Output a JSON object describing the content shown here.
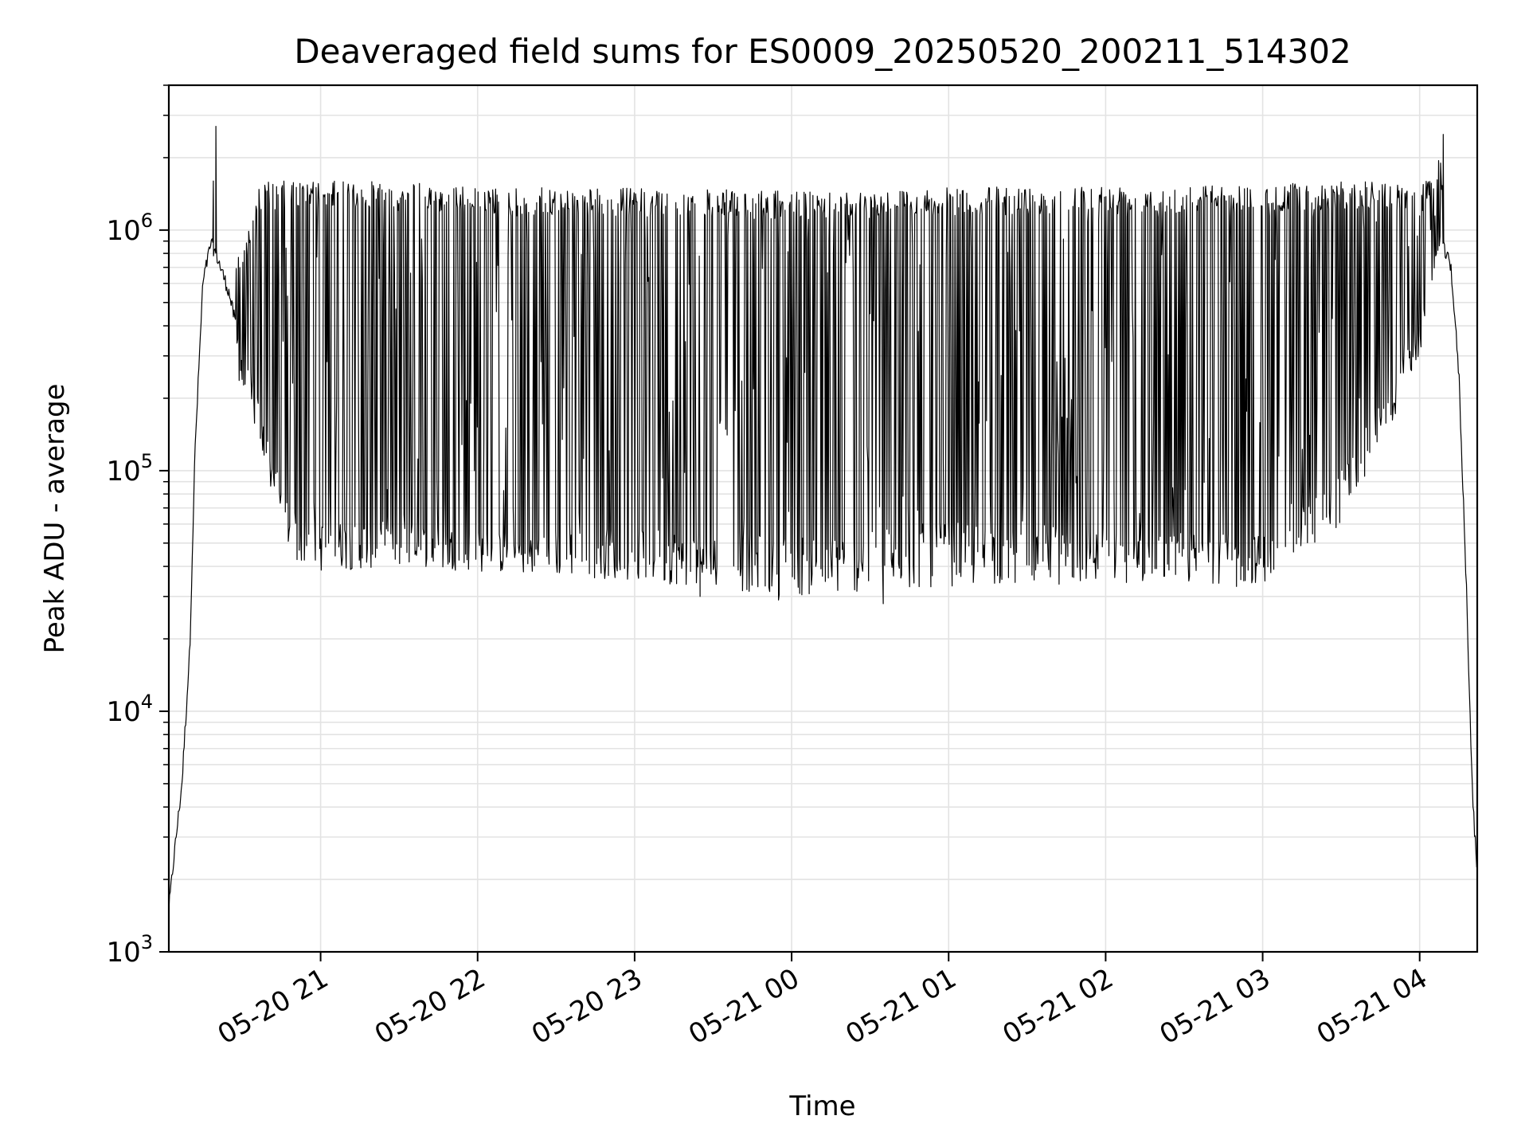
{
  "chart_data": {
    "type": "line",
    "title": "Deaveraged field sums for ES0009_20250520_200211_514302",
    "xlabel": "Time",
    "ylabel": "Peak ADU - average",
    "yscale": "log",
    "ylim": [
      1000,
      4000000
    ],
    "xlim": [
      "2025-05-20 20:02",
      "2025-05-21 04:22"
    ],
    "grid": true,
    "line_color": "#000000",
    "x_ticks": [
      {
        "t": "2025-05-20 21:00",
        "label": "05-20 21"
      },
      {
        "t": "2025-05-20 22:00",
        "label": "05-20 22"
      },
      {
        "t": "2025-05-20 23:00",
        "label": "05-20 23"
      },
      {
        "t": "2025-05-21 00:00",
        "label": "05-21 00"
      },
      {
        "t": "2025-05-21 01:00",
        "label": "05-21 01"
      },
      {
        "t": "2025-05-21 02:00",
        "label": "05-21 02"
      },
      {
        "t": "2025-05-21 03:00",
        "label": "05-21 03"
      },
      {
        "t": "2025-05-21 04:00",
        "label": "05-21 04"
      }
    ],
    "y_ticks": [
      {
        "value": 1000,
        "base": "10",
        "exp": "3"
      },
      {
        "value": 10000,
        "base": "10",
        "exp": "4"
      },
      {
        "value": 100000,
        "base": "10",
        "exp": "5"
      },
      {
        "value": 1000000,
        "base": "10",
        "exp": "6"
      }
    ],
    "series": [
      {
        "envelope": {
          "x": [
            "2025-05-20 20:02",
            "2025-05-20 20:04",
            "2025-05-20 20:07",
            "2025-05-20 20:10",
            "2025-05-20 20:12",
            "2025-05-20 20:15",
            "2025-05-20 20:18",
            "2025-05-20 20:20",
            "2025-05-20 20:25",
            "2025-05-20 20:30",
            "2025-05-20 20:35",
            "2025-05-20 20:40",
            "2025-05-20 20:45",
            "2025-05-20 20:50",
            "2025-05-20 21:00",
            "2025-05-20 21:30",
            "2025-05-20 22:00",
            "2025-05-20 23:00",
            "2025-05-21 00:00",
            "2025-05-21 01:00",
            "2025-05-21 02:00",
            "2025-05-21 03:00",
            "2025-05-21 03:30",
            "2025-05-21 03:45",
            "2025-05-21 04:00",
            "2025-05-21 04:05",
            "2025-05-21 04:08",
            "2025-05-21 04:12",
            "2025-05-21 04:15",
            "2025-05-21 04:18",
            "2025-05-21 04:20",
            "2025-05-21 04:22"
          ],
          "baseline": [
            1500,
            2500,
            5000,
            18000,
            120000,
            600000,
            880000,
            800000,
            550000,
            300000,
            200000,
            120000,
            80000,
            60000,
            55000,
            55000,
            50000,
            52000,
            48000,
            55000,
            52000,
            48000,
            90000,
            180000,
            350000,
            600000,
            900000,
            700000,
            250000,
            30000,
            5000,
            2000
          ],
          "peak": [
            1500,
            2500,
            5000,
            18000,
            120000,
            600000,
            900000,
            900000,
            800000,
            800000,
            1500000,
            1600000,
            1600000,
            1600000,
            1600000,
            1600000,
            1500000,
            1500000,
            1450000,
            1500000,
            1550000,
            1550000,
            1600000,
            1600000,
            1500000,
            1800000,
            2000000,
            900000,
            400000,
            30000,
            5000,
            2000
          ],
          "trough_min": [
            1500,
            2500,
            5000,
            18000,
            120000,
            600000,
            880000,
            700000,
            400000,
            200000,
            150000,
            90000,
            55000,
            42000,
            38000,
            40000,
            38000,
            35000,
            30000,
            33000,
            34000,
            34000,
            60000,
            120000,
            300000,
            600000,
            900000,
            700000,
            250000,
            30000,
            5000,
            2000
          ]
        },
        "spikes": [
          {
            "t": "2025-05-20 20:20",
            "value": 2700000
          },
          {
            "t": "2025-05-20 20:19",
            "value": 1600000
          },
          {
            "t": "2025-05-21 04:09",
            "value": 2500000
          },
          {
            "t": "2025-05-21 04:08",
            "value": 1900000
          }
        ],
        "deep_dips": [
          {
            "t": "2025-05-20 23:25",
            "value": 30000
          },
          {
            "t": "2025-05-20 23:55",
            "value": 29000
          },
          {
            "t": "2025-05-21 00:35",
            "value": 28000
          },
          {
            "t": "2025-05-21 02:50",
            "value": 33000
          }
        ]
      }
    ]
  }
}
